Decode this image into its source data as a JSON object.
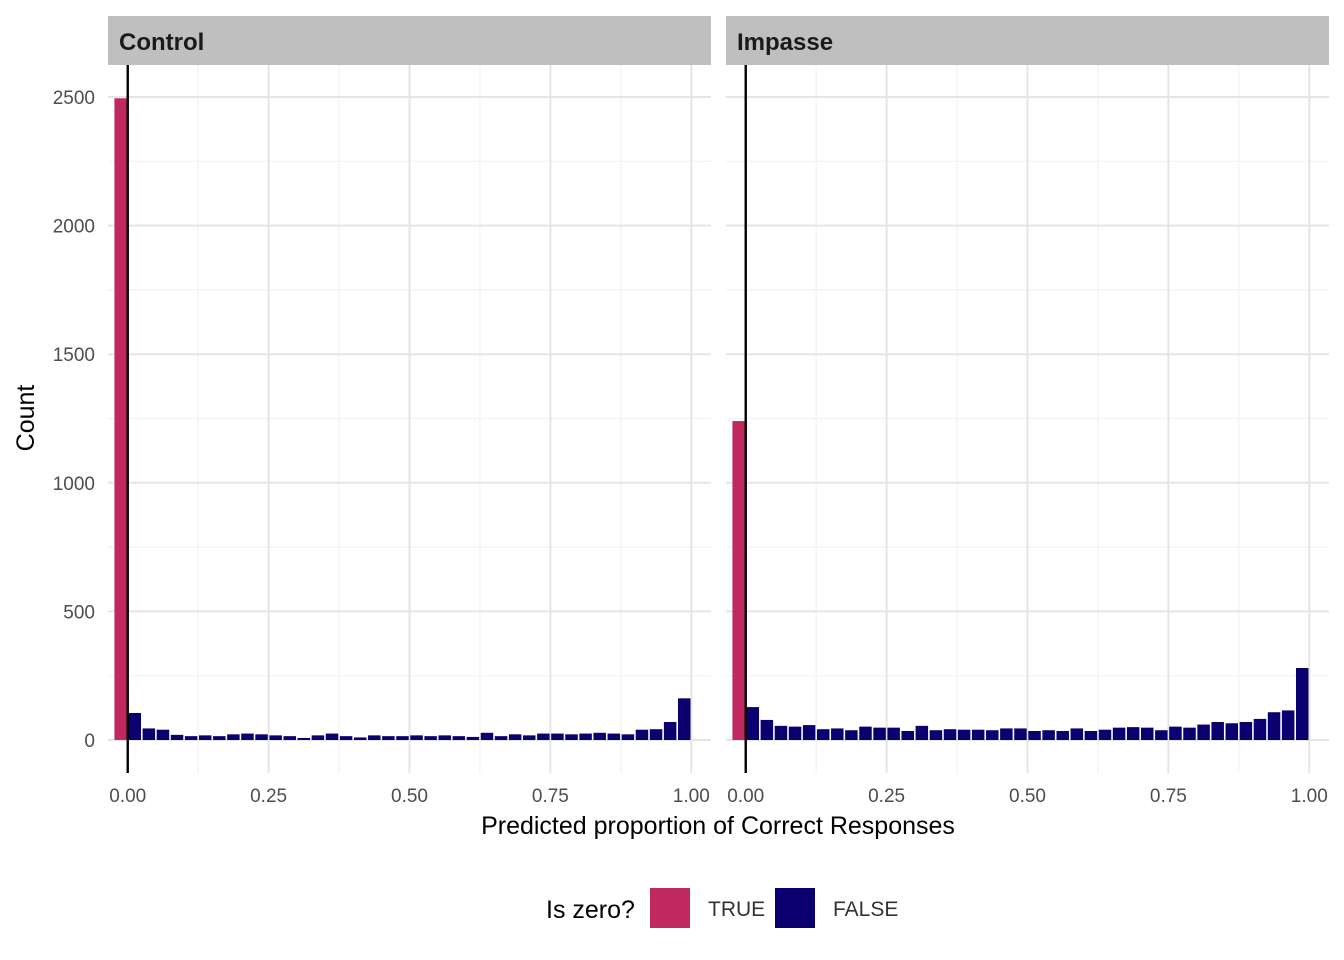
{
  "chart_data": {
    "type": "bar",
    "xlabel": "Predicted proportion of Correct Responses",
    "ylabel": "Count",
    "ylim": [
      0,
      2600
    ],
    "xlim": [
      -0.035,
      1.035
    ],
    "x_ticks": [
      "0.00",
      "0.25",
      "0.50",
      "0.75",
      "1.00"
    ],
    "y_ticks": [
      "0",
      "500",
      "1000",
      "1500",
      "2000",
      "2500"
    ],
    "grid": true,
    "reference_line_x": 0,
    "legend": {
      "title": "Is zero?",
      "position": "bottom",
      "entries": [
        {
          "label": "TRUE",
          "color": "#C0295F"
        },
        {
          "label": "FALSE",
          "color": "#0B0070"
        }
      ]
    },
    "bin_width": 0.025,
    "panels": [
      {
        "title": "Control",
        "zero_bin": {
          "x": -0.0125,
          "count": 2495
        },
        "bin_centers": [
          0.0125,
          0.0375,
          0.0625,
          0.0875,
          0.1125,
          0.1375,
          0.1625,
          0.1875,
          0.2125,
          0.2375,
          0.2625,
          0.2875,
          0.3125,
          0.3375,
          0.3625,
          0.3875,
          0.4125,
          0.4375,
          0.4625,
          0.4875,
          0.5125,
          0.5375,
          0.5625,
          0.5875,
          0.6125,
          0.6375,
          0.6625,
          0.6875,
          0.7125,
          0.7375,
          0.7625,
          0.7875,
          0.8125,
          0.8375,
          0.8625,
          0.8875,
          0.9125,
          0.9375,
          0.9625,
          0.9875
        ],
        "counts": [
          105,
          45,
          40,
          20,
          15,
          18,
          15,
          22,
          25,
          22,
          18,
          15,
          8,
          18,
          25,
          15,
          10,
          18,
          15,
          15,
          18,
          15,
          18,
          15,
          12,
          28,
          15,
          22,
          18,
          25,
          25,
          22,
          25,
          28,
          25,
          22,
          40,
          42,
          70,
          162
        ]
      },
      {
        "title": "Impasse",
        "zero_bin": {
          "x": -0.0125,
          "count": 1240
        },
        "bin_centers": [
          0.0125,
          0.0375,
          0.0625,
          0.0875,
          0.1125,
          0.1375,
          0.1625,
          0.1875,
          0.2125,
          0.2375,
          0.2625,
          0.2875,
          0.3125,
          0.3375,
          0.3625,
          0.3875,
          0.4125,
          0.4375,
          0.4625,
          0.4875,
          0.5125,
          0.5375,
          0.5625,
          0.5875,
          0.6125,
          0.6375,
          0.6625,
          0.6875,
          0.7125,
          0.7375,
          0.7625,
          0.7875,
          0.8125,
          0.8375,
          0.8625,
          0.8875,
          0.9125,
          0.9375,
          0.9625,
          0.9875
        ],
        "counts": [
          128,
          78,
          55,
          52,
          58,
          42,
          45,
          38,
          52,
          48,
          48,
          35,
          55,
          38,
          42,
          40,
          40,
          38,
          45,
          45,
          35,
          38,
          35,
          45,
          35,
          40,
          48,
          50,
          48,
          38,
          52,
          48,
          60,
          70,
          65,
          70,
          82,
          108,
          115,
          280
        ]
      }
    ]
  }
}
